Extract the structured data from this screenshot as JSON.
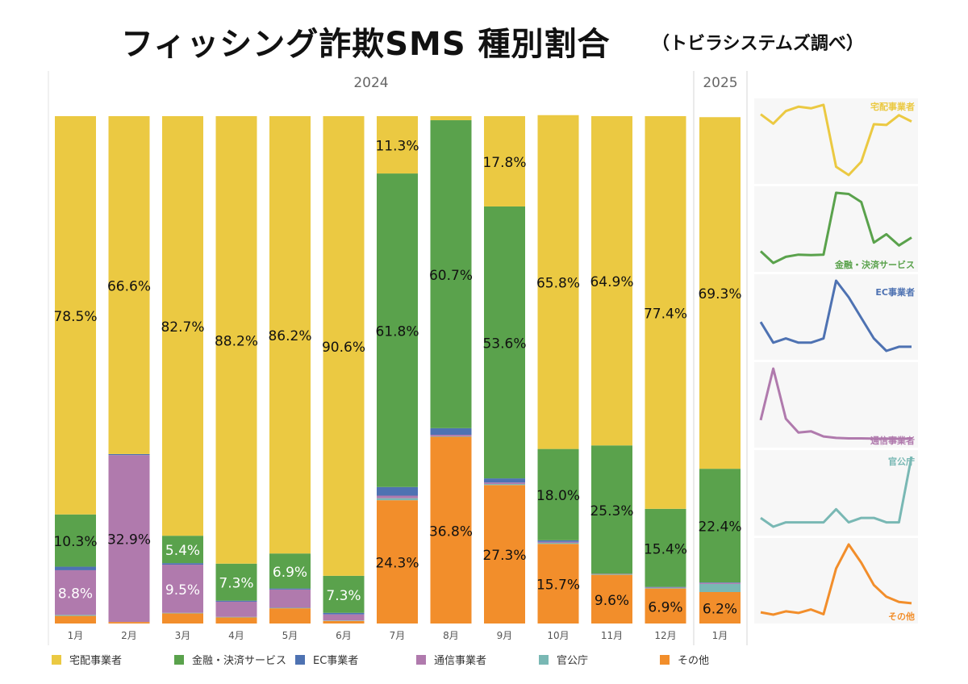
{
  "title": "フィッシング詐欺SMS 種別割合",
  "subtitle": "（トビラシステムズ調べ）",
  "colors": {
    "宅配事業者": "#EBC942",
    "金融・決済サービス": "#5AA24C",
    "EC事業者": "#4E72B2",
    "通信事業者": "#B07AAD",
    "官公庁": "#79B8B4",
    "その他": "#F28E2B"
  },
  "legend": [
    {
      "label": "宅配事業者",
      "color": "#EBC942"
    },
    {
      "label": "金融・決済サービス",
      "color": "#5AA24C"
    },
    {
      "label": "EC事業者",
      "color": "#4E72B2"
    },
    {
      "label": "通信事業者",
      "color": "#B07AAD"
    },
    {
      "label": "官公庁",
      "color": "#79B8B4"
    },
    {
      "label": "その他",
      "color": "#F28E2B"
    }
  ],
  "chart_data": [
    {
      "type": "bar",
      "stacked": true,
      "normalized_percent": true,
      "year_groups": [
        {
          "label": "2024",
          "categories": [
            "1月",
            "2月",
            "3月",
            "4月",
            "5月",
            "6月",
            "7月",
            "8月",
            "9月",
            "10月",
            "11月",
            "12月"
          ]
        },
        {
          "label": "2025",
          "categories": [
            "1月"
          ]
        }
      ],
      "categories": [
        "1月",
        "2月",
        "3月",
        "4月",
        "5月",
        "6月",
        "7月",
        "8月",
        "9月",
        "10月",
        "11月",
        "12月",
        "1月"
      ],
      "series": [
        {
          "name": "その他",
          "values": [
            1.5,
            0.3,
            2.0,
            1.2,
            3.0,
            0.5,
            24.3,
            36.8,
            27.3,
            15.7,
            9.6,
            6.9,
            6.2
          ]
        },
        {
          "name": "官公庁",
          "values": [
            0.2,
            0.0,
            0.1,
            0.1,
            0.1,
            0.1,
            0.4,
            0.1,
            0.2,
            0.2,
            0.1,
            0.1,
            1.6
          ]
        },
        {
          "name": "通信事業者",
          "values": [
            8.8,
            32.9,
            9.5,
            3.0,
            3.6,
            1.2,
            0.5,
            0.3,
            0.3,
            0.2,
            0.1,
            0.1,
            0.2
          ]
        },
        {
          "name": "EC事業者",
          "values": [
            0.7,
            0.2,
            0.3,
            0.2,
            0.2,
            0.3,
            1.7,
            1.3,
            0.8,
            0.3,
            0.0,
            0.1,
            0.1
          ]
        },
        {
          "name": "金融・決済サービス",
          "values": [
            10.3,
            0.0,
            5.4,
            7.3,
            6.9,
            7.3,
            61.8,
            60.7,
            53.6,
            18.0,
            25.3,
            15.4,
            22.4
          ]
        },
        {
          "name": "宅配事業者",
          "values": [
            78.5,
            66.6,
            82.7,
            88.2,
            86.2,
            90.6,
            11.3,
            0.8,
            17.8,
            65.8,
            64.9,
            77.4,
            69.3
          ]
        }
      ],
      "data_labels": [
        {
          "month": 0,
          "series": "宅配事業者",
          "text": "78.5%"
        },
        {
          "month": 0,
          "series": "金融・決済サービス",
          "text": "10.3%"
        },
        {
          "month": 0,
          "series": "通信事業者",
          "text": "8.8%"
        },
        {
          "month": 1,
          "series": "宅配事業者",
          "text": "66.6%"
        },
        {
          "month": 1,
          "series": "通信事業者",
          "text": "32.9%"
        },
        {
          "month": 2,
          "series": "宅配事業者",
          "text": "82.7%"
        },
        {
          "month": 2,
          "series": "金融・決済サービス",
          "text": "5.4%"
        },
        {
          "month": 2,
          "series": "通信事業者",
          "text": "9.5%"
        },
        {
          "month": 3,
          "series": "宅配事業者",
          "text": "88.2%"
        },
        {
          "month": 3,
          "series": "金融・決済サービス",
          "text": "7.3%"
        },
        {
          "month": 4,
          "series": "宅配事業者",
          "text": "86.2%"
        },
        {
          "month": 4,
          "series": "金融・決済サービス",
          "text": "6.9%"
        },
        {
          "month": 5,
          "series": "宅配事業者",
          "text": "90.6%"
        },
        {
          "month": 5,
          "series": "金融・決済サービス",
          "text": "7.3%"
        },
        {
          "month": 6,
          "series": "宅配事業者",
          "text": "11.3%"
        },
        {
          "month": 6,
          "series": "金融・決済サービス",
          "text": "61.8%"
        },
        {
          "month": 6,
          "series": "その他",
          "text": "24.3%"
        },
        {
          "month": 7,
          "series": "金融・決済サービス",
          "text": "60.7%"
        },
        {
          "month": 7,
          "series": "その他",
          "text": "36.8%"
        },
        {
          "month": 8,
          "series": "宅配事業者",
          "text": "17.8%"
        },
        {
          "month": 8,
          "series": "金融・決済サービス",
          "text": "53.6%"
        },
        {
          "month": 8,
          "series": "その他",
          "text": "27.3%"
        },
        {
          "month": 9,
          "series": "宅配事業者",
          "text": "65.8%"
        },
        {
          "month": 9,
          "series": "金融・決済サービス",
          "text": "18.0%"
        },
        {
          "month": 9,
          "series": "その他",
          "text": "15.7%"
        },
        {
          "month": 10,
          "series": "宅配事業者",
          "text": "64.9%"
        },
        {
          "month": 10,
          "series": "金融・決済サービス",
          "text": "25.3%"
        },
        {
          "month": 10,
          "series": "その他",
          "text": "9.6%"
        },
        {
          "month": 11,
          "series": "宅配事業者",
          "text": "77.4%"
        },
        {
          "month": 11,
          "series": "金融・決済サービス",
          "text": "15.4%"
        },
        {
          "month": 11,
          "series": "その他",
          "text": "6.9%"
        },
        {
          "month": 12,
          "series": "宅配事業者",
          "text": "69.3%"
        },
        {
          "month": 12,
          "series": "金融・決済サービス",
          "text": "22.4%"
        },
        {
          "month": 12,
          "series": "その他",
          "text": "6.2%"
        }
      ],
      "ylim": [
        0,
        100
      ]
    },
    {
      "type": "line",
      "small_multiples": true,
      "x": [
        "1月",
        "2月",
        "3月",
        "4月",
        "5月",
        "6月",
        "7月",
        "8月",
        "9月",
        "10月",
        "11月",
        "12月",
        "1月"
      ],
      "panels": [
        {
          "name": "宅配事業者",
          "values": [
            78.5,
            66.6,
            82.7,
            88.2,
            86.2,
            90.6,
            11.3,
            0.8,
            17.8,
            65.8,
            64.9,
            77.4,
            69.3
          ]
        },
        {
          "name": "金融・決済サービス",
          "values": [
            10.3,
            0.0,
            5.4,
            7.3,
            6.9,
            7.3,
            61.8,
            60.7,
            53.6,
            18.0,
            25.3,
            15.4,
            22.4
          ]
        },
        {
          "name": "EC事業者",
          "values": [
            0.7,
            0.2,
            0.3,
            0.2,
            0.2,
            0.3,
            1.7,
            1.3,
            0.8,
            0.3,
            0.0,
            0.1,
            0.1
          ]
        },
        {
          "name": "通信事業者",
          "values": [
            8.8,
            32.9,
            9.5,
            3.0,
            3.6,
            1.2,
            0.5,
            0.3,
            0.3,
            0.2,
            0.1,
            0.1,
            0.2
          ]
        },
        {
          "name": "官公庁",
          "values": [
            0.2,
            0.0,
            0.1,
            0.1,
            0.1,
            0.1,
            0.4,
            0.1,
            0.2,
            0.2,
            0.1,
            0.1,
            1.6
          ]
        },
        {
          "name": "その他",
          "values": [
            1.5,
            0.3,
            2.0,
            1.2,
            3.0,
            0.5,
            24.3,
            36.8,
            27.3,
            15.7,
            9.6,
            6.9,
            6.2
          ]
        }
      ]
    }
  ]
}
